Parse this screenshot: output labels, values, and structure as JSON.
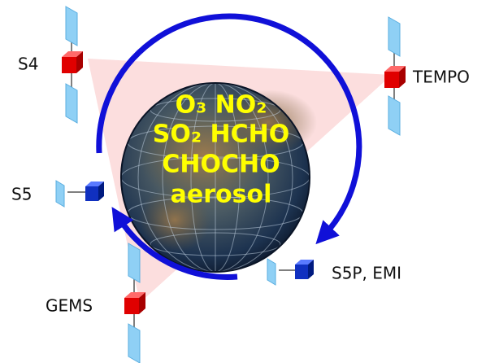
{
  "satellites": [
    {
      "label": "S4"
    },
    {
      "label": "TEMPO"
    },
    {
      "label": "S5"
    },
    {
      "label": "GEMS"
    },
    {
      "label": "S5P, EMI"
    }
  ],
  "species": [
    "O₃ NO₂",
    "SO₂ HCHO",
    "CHOCHO",
    "aerosol"
  ]
}
